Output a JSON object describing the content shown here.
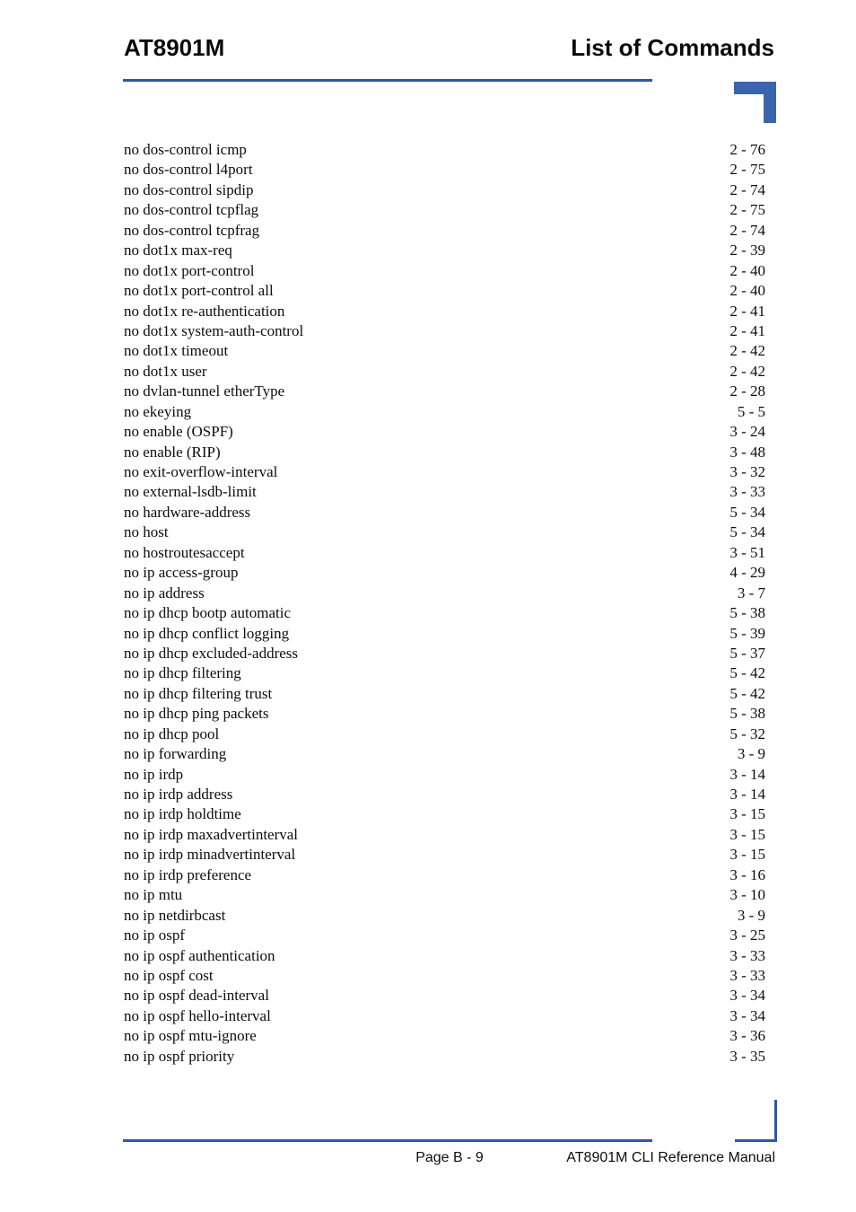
{
  "header": {
    "model": "AT8901M",
    "section": "List of Commands"
  },
  "entries": [
    {
      "label": "no dos-control icmp",
      "page": "2 - 76"
    },
    {
      "label": "no dos-control l4port",
      "page": "2 - 75"
    },
    {
      "label": "no dos-control sipdip",
      "page": "2 - 74"
    },
    {
      "label": "no dos-control tcpflag",
      "page": "2 - 75"
    },
    {
      "label": "no dos-control tcpfrag",
      "page": "2 - 74"
    },
    {
      "label": "no dot1x max-req",
      "page": "2 - 39"
    },
    {
      "label": "no dot1x port-control",
      "page": "2 - 40"
    },
    {
      "label": "no dot1x port-control all",
      "page": "2 - 40"
    },
    {
      "label": "no dot1x re-authentication",
      "page": "2 - 41"
    },
    {
      "label": "no dot1x system-auth-control",
      "page": "2 - 41"
    },
    {
      "label": "no dot1x timeout",
      "page": "2 - 42"
    },
    {
      "label": "no dot1x user",
      "page": "2 - 42"
    },
    {
      "label": "no dvlan-tunnel etherType",
      "page": "2 - 28"
    },
    {
      "label": "no ekeying",
      "page": "5 - 5"
    },
    {
      "label": "no enable (OSPF)",
      "page": "3 - 24"
    },
    {
      "label": "no enable (RIP)",
      "page": "3 - 48"
    },
    {
      "label": "no exit-overflow-interval",
      "page": "3 - 32"
    },
    {
      "label": "no external-lsdb-limit",
      "page": "3 - 33"
    },
    {
      "label": "no hardware-address",
      "page": "5 - 34"
    },
    {
      "label": "no host",
      "page": "5 - 34"
    },
    {
      "label": "no hostroutesaccept",
      "page": "3 - 51"
    },
    {
      "label": "no ip access-group",
      "page": "4 - 29"
    },
    {
      "label": "no ip address",
      "page": "3 - 7"
    },
    {
      "label": "no ip dhcp bootp automatic",
      "page": "5 - 38"
    },
    {
      "label": "no ip dhcp conflict logging",
      "page": "5 - 39"
    },
    {
      "label": "no ip dhcp excluded-address",
      "page": "5 - 37"
    },
    {
      "label": "no ip dhcp filtering",
      "page": "5 - 42"
    },
    {
      "label": "no ip dhcp filtering trust",
      "page": "5 - 42"
    },
    {
      "label": "no ip dhcp ping packets",
      "page": "5 - 38"
    },
    {
      "label": "no ip dhcp pool",
      "page": "5 - 32"
    },
    {
      "label": "no ip forwarding",
      "page": "3 - 9"
    },
    {
      "label": "no ip irdp",
      "page": "3 - 14"
    },
    {
      "label": "no ip irdp address",
      "page": "3 - 14"
    },
    {
      "label": "no ip irdp holdtime",
      "page": "3 - 15"
    },
    {
      "label": "no ip irdp maxadvertinterval",
      "page": "3 - 15"
    },
    {
      "label": "no ip irdp minadvertinterval",
      "page": "3 - 15"
    },
    {
      "label": "no ip irdp preference",
      "page": "3 - 16"
    },
    {
      "label": "no ip mtu",
      "page": "3 - 10"
    },
    {
      "label": "no ip netdirbcast",
      "page": "3 - 9"
    },
    {
      "label": "no ip ospf",
      "page": "3 - 25"
    },
    {
      "label": "no ip ospf authentication",
      "page": "3 - 33"
    },
    {
      "label": "no ip ospf cost",
      "page": "3 - 33"
    },
    {
      "label": "no ip ospf dead-interval",
      "page": "3 - 34"
    },
    {
      "label": "no ip ospf hello-interval",
      "page": "3 - 34"
    },
    {
      "label": "no ip ospf mtu-ignore",
      "page": "3 - 36"
    },
    {
      "label": "no ip ospf priority",
      "page": "3 - 35"
    }
  ],
  "footer": {
    "page_label": "Page B - 9",
    "manual_label": "AT8901M CLI Reference Manual"
  },
  "colors": {
    "accent_blue": "#2f57a5",
    "corner_block_blue": "#3c63ad"
  }
}
